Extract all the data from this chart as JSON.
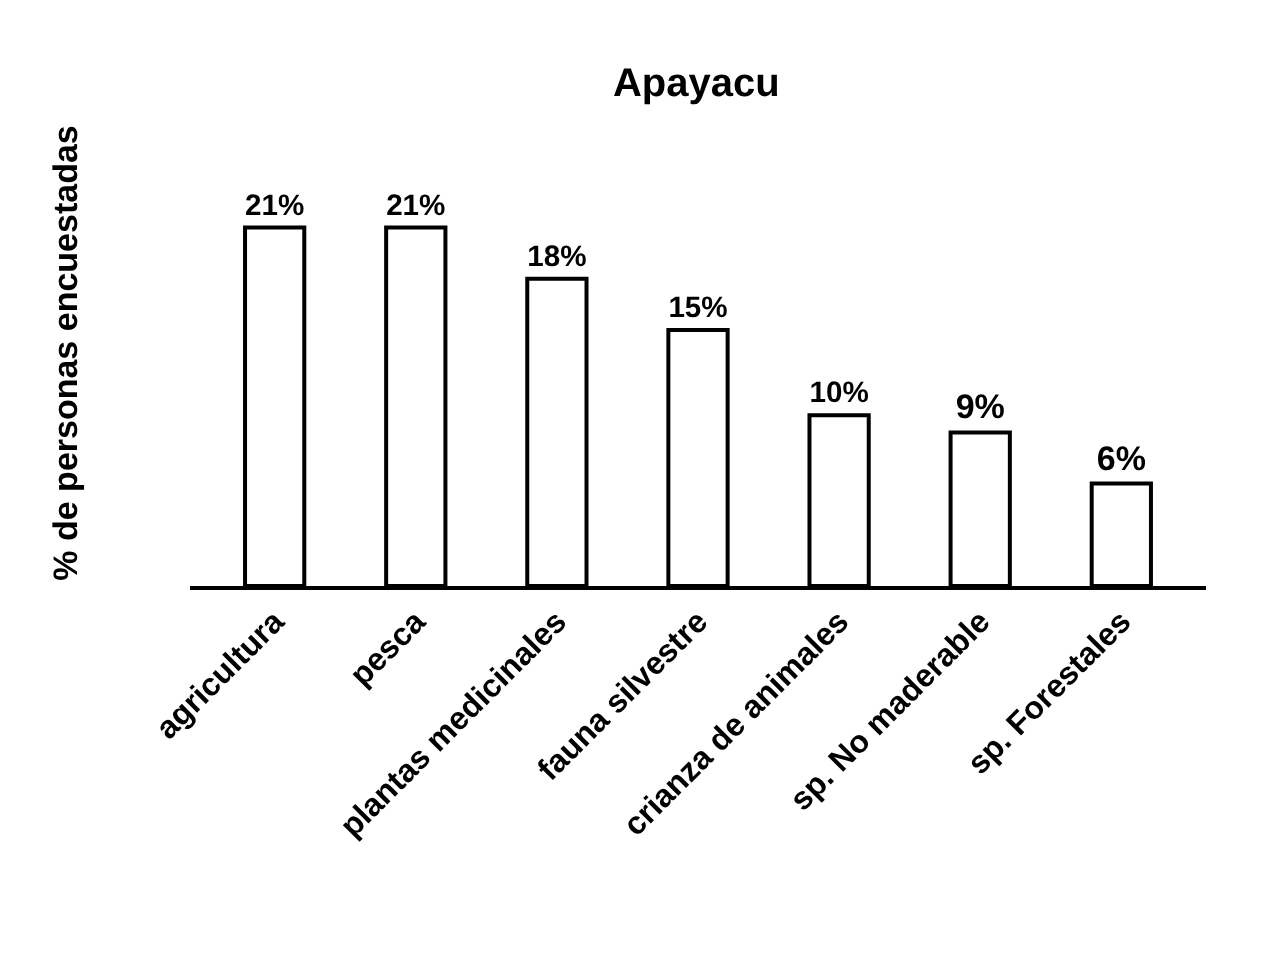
{
  "chart_data": {
    "type": "bar",
    "title": "Apayacu",
    "ylabel": "% de personas encuestadas",
    "categories": [
      "agricultura",
      "pesca",
      "plantas medicinales",
      "fauna silvestre",
      "crianza de animales",
      "sp. No maderable",
      "sp. Forestales"
    ],
    "values": [
      21,
      21,
      18,
      15,
      10,
      9,
      6
    ],
    "value_labels": [
      "21%",
      "21%",
      "18%",
      "15%",
      "10%",
      "9%",
      "6%"
    ],
    "color": "#ffffff"
  }
}
